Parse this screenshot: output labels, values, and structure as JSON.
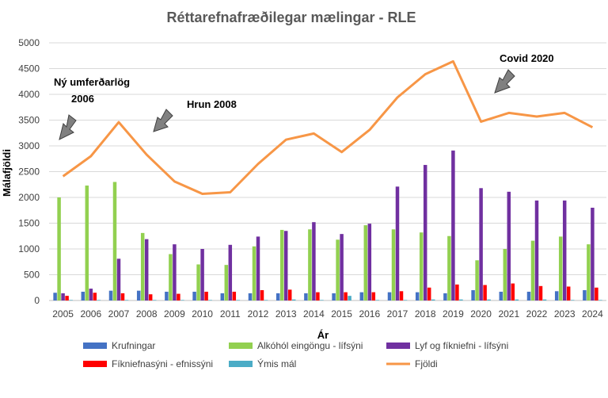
{
  "chart_data": {
    "type": "bar",
    "title": "Réttarefnafræðilegar mælingar - RLE",
    "xlabel": "Ár",
    "ylabel": "Málafjöldi",
    "ylim": [
      0,
      5000
    ],
    "yticks": [
      "0",
      "500",
      "1000",
      "1500",
      "2000",
      "2500",
      "3000",
      "3500",
      "4000",
      "4500",
      "5000"
    ],
    "categories": [
      "2005",
      "2006",
      "2007",
      "2008",
      "2009",
      "2010",
      "2011",
      "2012",
      "2013",
      "2014",
      "2015",
      "2016",
      "2017",
      "2018",
      "2019",
      "2020",
      "2021",
      "2022",
      "2023",
      "2024"
    ],
    "series": [
      {
        "name": "Krufningar",
        "type": "bar",
        "color": "#4472c4",
        "values": [
          150,
          170,
          190,
          190,
          170,
          170,
          140,
          140,
          140,
          140,
          140,
          160,
          160,
          160,
          140,
          200,
          170,
          170,
          180,
          200
        ]
      },
      {
        "name": "Alkóhól eingöngu - lífsýni",
        "type": "bar",
        "color": "#92d050",
        "values": [
          2000,
          2230,
          2300,
          1310,
          900,
          700,
          690,
          1050,
          1370,
          1380,
          1180,
          1460,
          1380,
          1320,
          1250,
          780,
          1000,
          1160,
          1240,
          1090
        ]
      },
      {
        "name": "Lyf og fíkniefni - lífsýni",
        "type": "bar",
        "color": "#7030a0",
        "values": [
          140,
          230,
          810,
          1190,
          1090,
          1000,
          1080,
          1240,
          1350,
          1520,
          1290,
          1490,
          2210,
          2630,
          2910,
          2180,
          2110,
          1940,
          1940,
          1800
        ]
      },
      {
        "name": "Fíkniefnasýni - efnissýni",
        "type": "bar",
        "color": "#ff0000",
        "values": [
          90,
          150,
          140,
          120,
          130,
          170,
          170,
          200,
          210,
          160,
          160,
          160,
          180,
          250,
          310,
          300,
          330,
          280,
          270,
          250
        ]
      },
      {
        "name": "Ýmis mál",
        "type": "bar",
        "color": "#4bacc6",
        "values": [
          10,
          10,
          10,
          10,
          10,
          10,
          10,
          10,
          20,
          10,
          90,
          10,
          10,
          20,
          20,
          20,
          20,
          20,
          10,
          10
        ]
      },
      {
        "name": "Fjöldi",
        "type": "line",
        "color": "#f79646",
        "values": [
          2410,
          2800,
          3460,
          2830,
          2310,
          2070,
          2100,
          2650,
          3120,
          3240,
          2880,
          3310,
          3940,
          4390,
          4640,
          3470,
          3640,
          3570,
          3640,
          3360
        ]
      }
    ],
    "annotations": [
      {
        "text": "Ný umferðarlög"
      },
      {
        "text": "2006"
      },
      {
        "text": "Hrun 2008"
      },
      {
        "text": "Covid 2020"
      }
    ],
    "legend_position": "bottom"
  }
}
